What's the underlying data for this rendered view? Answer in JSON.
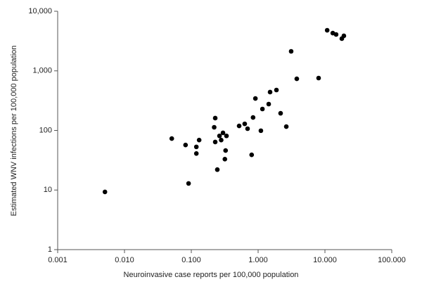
{
  "chart_data": {
    "type": "scatter",
    "x_label": "Neuroinvasive case reports per 100,000 population",
    "y_label": "Estimated WNV infections per 100,000 population",
    "x": [
      0.0051,
      0.051,
      0.082,
      0.119,
      0.119,
      0.131,
      0.091,
      0.228,
      0.22,
      0.228,
      0.245,
      0.264,
      0.298,
      0.28,
      0.336,
      0.326,
      0.318,
      0.52,
      0.63,
      0.695,
      0.8,
      0.84,
      0.91,
      1.1,
      1.16,
      1.44,
      1.51,
      1.88,
      2.17,
      2.64,
      3.12,
      3.79,
      8.04,
      10.8,
      13.1,
      14.7,
      17.9,
      19.2
    ],
    "values": [
      9.3,
      73,
      57,
      53,
      41,
      69,
      12.9,
      161,
      113,
      64,
      22,
      81,
      91,
      69,
      81,
      46,
      33,
      119,
      129,
      107,
      39,
      165,
      344,
      99,
      229,
      277,
      440,
      477,
      194,
      116,
      2125,
      736,
      757,
      4800,
      4300,
      4080,
      3470,
      3870
    ],
    "color": "#000000",
    "xscale": "log",
    "yscale": "log",
    "xlim": [
      0.001,
      100
    ],
    "ylim": [
      1,
      10000
    ],
    "xticks": [
      0.001,
      {
        "value": 0.01,
        "label": "0.010"
      },
      {
        "value": 0.1,
        "label": "0.100"
      },
      {
        "value": 1,
        "label": "1.000"
      },
      {
        "value": 10,
        "label": "10.000"
      },
      {
        "value": 100,
        "label": "100.000"
      }
    ],
    "yticks": [
      1,
      10,
      100,
      {
        "value": 1000,
        "label": "1,000"
      },
      {
        "value": 10000,
        "label": "10,000"
      }
    ],
    "grid": false
  }
}
